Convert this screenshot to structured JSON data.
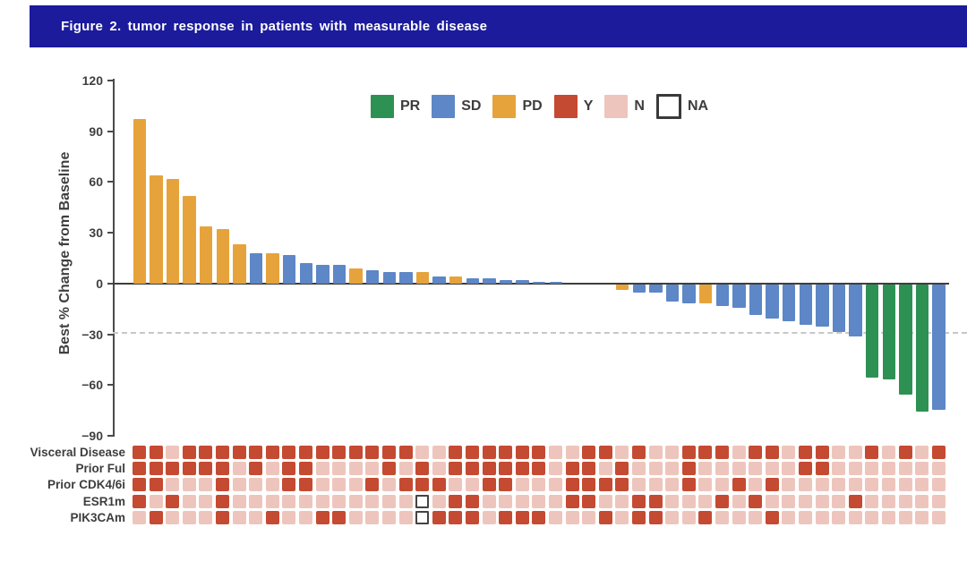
{
  "header": {
    "title": "Figure 2. tumor response in patients with measurable disease"
  },
  "colors": {
    "PR": "#2e9154",
    "SD": "#5d87c6",
    "PD": "#e7a33b",
    "Y": "#c54a32",
    "N": "#eec5bc",
    "NA": "#ffffff",
    "title_bar": "#1b1b9c"
  },
  "legend": [
    {
      "label": "PR",
      "color_key": "PR"
    },
    {
      "label": "SD",
      "color_key": "SD"
    },
    {
      "label": "PD",
      "color_key": "PD"
    },
    {
      "label": "Y",
      "color_key": "Y"
    },
    {
      "label": "N",
      "color_key": "N"
    },
    {
      "label": "NA",
      "color_key": "NA"
    }
  ],
  "chart_data": {
    "type": "bar",
    "title": "Figure 2. tumor response in patients with measurable disease",
    "xlabel": "",
    "ylabel": "Best % Change from Baseline",
    "ylim": [
      -90,
      120
    ],
    "yticks": [
      120,
      90,
      60,
      30,
      0,
      -30,
      -60,
      -90
    ],
    "reference_line": -30,
    "grid": false,
    "legend_position": "top",
    "values": [
      97,
      64,
      62,
      52,
      34,
      32,
      23,
      18,
      18,
      17,
      12,
      11,
      11,
      9,
      8,
      7,
      7,
      7,
      4,
      4,
      3,
      3,
      2,
      2,
      1,
      1,
      0,
      0,
      0,
      -3,
      -5,
      -5,
      -10,
      -11,
      -11,
      -13,
      -14,
      -18,
      -20,
      -22,
      -24,
      -25,
      -28,
      -31,
      -55,
      -56,
      -65,
      -75,
      -74
    ],
    "responses": [
      "PD",
      "PD",
      "PD",
      "PD",
      "PD",
      "PD",
      "PD",
      "SD",
      "PD",
      "SD",
      "SD",
      "SD",
      "SD",
      "PD",
      "SD",
      "SD",
      "SD",
      "PD",
      "SD",
      "PD",
      "SD",
      "SD",
      "SD",
      "SD",
      "SD",
      "SD",
      "SD",
      "SD",
      "SD",
      "PD",
      "SD",
      "SD",
      "SD",
      "SD",
      "PD",
      "SD",
      "SD",
      "SD",
      "SD",
      "SD",
      "SD",
      "SD",
      "SD",
      "SD",
      "PR",
      "PR",
      "PR",
      "PR",
      "SD"
    ],
    "heatmap_rows": [
      {
        "label": "Visceral Disease",
        "cells": "YYNYYYYYYYYYYYYYYNNYYYYYYNNYYNYNNYYYNYYNYYNNYNYNY"
      },
      {
        "label": "Prior Ful",
        "cells": "YYYYYYNYNYYNNNNYNYNYYYYYYNYYNYNNNYNNNNNNYYNNNNNNN"
      },
      {
        "label": "Prior CDK4/6i",
        "cells": "YYNNNYNNNYYNNNYNYYYNNYYNNNYYYYNNNYNNYNYNNNNNNNNNN"
      },
      {
        "label": "ESR1m",
        "cells": "YNYNNYNNNNNNNNNNNANYYNNNNNYYNNYYNNNYNYNNNNNYNNNNN"
      },
      {
        "label": "PIK3CAm",
        "cells": "NYNNNYNNYNNYYNNNNAYYYNYYYNNNYNYYNNYNNNYNNNNNNNNNN"
      }
    ]
  }
}
